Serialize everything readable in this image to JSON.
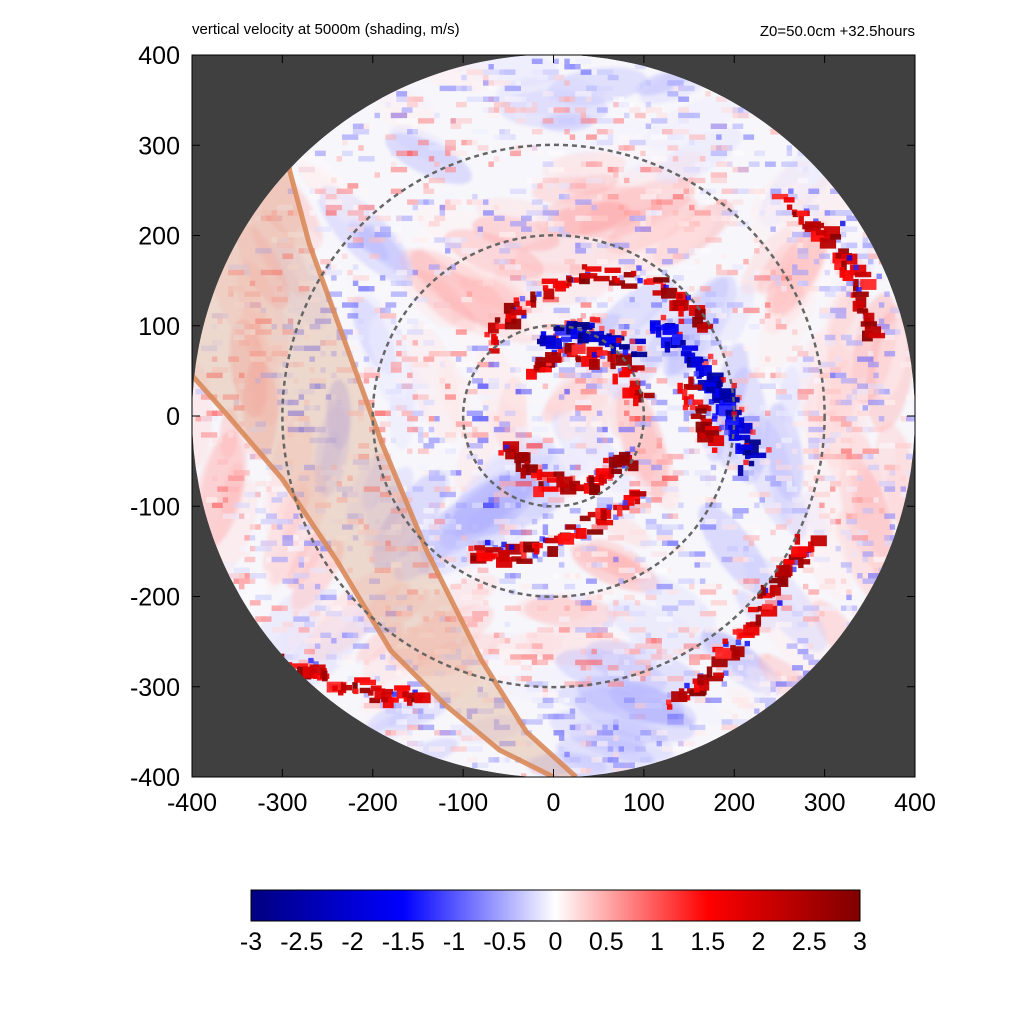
{
  "chart_data": {
    "type": "heatmap",
    "title": "vertical velocity at 5000m (shading, m/s)",
    "annotation": "Z0=50.0cm  +32.5hours",
    "xlabel": "",
    "ylabel": "",
    "xlim": [
      -400,
      400
    ],
    "ylim": [
      -400,
      400
    ],
    "x_ticks": [
      -400,
      -300,
      -200,
      -100,
      0,
      100,
      200,
      300,
      400
    ],
    "y_ticks": [
      -400,
      -300,
      -200,
      -100,
      0,
      100,
      200,
      300,
      400
    ],
    "x_tick_labels": [
      "-400",
      "-300",
      "-200",
      "-100",
      "0",
      "100",
      "200",
      "300",
      "400"
    ],
    "y_tick_labels": [
      "-400",
      "-300",
      "-200",
      "-100",
      "0",
      "100",
      "200",
      "300",
      "400"
    ],
    "domain_radius": 400,
    "range_rings": [
      100,
      200,
      300
    ],
    "colorbar": {
      "min": -3,
      "max": 3,
      "ticks": [
        -3,
        -2.5,
        -2,
        -1.5,
        -1,
        -0.5,
        0,
        0.5,
        1,
        1.5,
        2,
        2.5,
        3
      ],
      "tick_labels": [
        "-3",
        "-2.5",
        "-2",
        "-1.5",
        "-1",
        "-0.5",
        "0",
        "0.5",
        "1",
        "1.5",
        "2",
        "2.5",
        "3"
      ],
      "colormap": [
        "#000080",
        "#0000ff",
        "#ffffff",
        "#ff0000",
        "#800000"
      ]
    },
    "band": {
      "edge1": [
        [
          -292,
          272
        ],
        [
          -270,
          190
        ],
        [
          -230,
          80
        ],
        [
          -190,
          -30
        ],
        [
          -140,
          -150
        ],
        [
          -80,
          -270
        ],
        [
          -30,
          -350
        ],
        [
          25,
          -400
        ]
      ],
      "edge2": [
        [
          -400,
          45
        ],
        [
          -360,
          0
        ],
        [
          -300,
          -70
        ],
        [
          -240,
          -160
        ],
        [
          -180,
          -260
        ],
        [
          -120,
          -320
        ],
        [
          -60,
          -370
        ],
        [
          0,
          -400
        ]
      ]
    },
    "rainbands": [
      {
        "points": [
          [
            -80,
            80
          ],
          [
            -40,
            130
          ],
          [
            30,
            160
          ],
          [
            110,
            150
          ],
          [
            170,
            100
          ]
        ],
        "sign": 1
      },
      {
        "points": [
          [
            -60,
            -30
          ],
          [
            -20,
            -70
          ],
          [
            40,
            -70
          ],
          [
            80,
            -40
          ]
        ],
        "sign": 1
      },
      {
        "points": [
          [
            -30,
            60
          ],
          [
            20,
            75
          ],
          [
            70,
            60
          ],
          [
            95,
            20
          ]
        ],
        "sign": 1
      },
      {
        "points": [
          [
            -20,
            90
          ],
          [
            40,
            100
          ],
          [
            90,
            70
          ]
        ],
        "sign": -1
      },
      {
        "points": [
          [
            -100,
            -150
          ],
          [
            -40,
            -150
          ],
          [
            30,
            -120
          ],
          [
            90,
            -80
          ]
        ],
        "sign": 1
      },
      {
        "points": [
          [
            130,
            -320
          ],
          [
            170,
            -280
          ],
          [
            210,
            -230
          ],
          [
            250,
            -170
          ],
          [
            280,
            -130
          ]
        ],
        "sign": 1
      },
      {
        "points": [
          [
            250,
            240
          ],
          [
            300,
            200
          ],
          [
            330,
            150
          ],
          [
            350,
            90
          ]
        ],
        "sign": 1
      },
      {
        "points": [
          [
            -300,
            -270
          ],
          [
            -250,
            -290
          ],
          [
            -200,
            -305
          ],
          [
            -150,
            -310
          ]
        ],
        "sign": 1
      },
      {
        "points": [
          [
            100,
            110
          ],
          [
            150,
            70
          ],
          [
            180,
            30
          ],
          [
            200,
            -10
          ],
          [
            210,
            -50
          ]
        ],
        "sign": -1
      },
      {
        "points": [
          [
            140,
            40
          ],
          [
            160,
            0
          ],
          [
            170,
            -30
          ]
        ],
        "sign": 1
      }
    ]
  }
}
